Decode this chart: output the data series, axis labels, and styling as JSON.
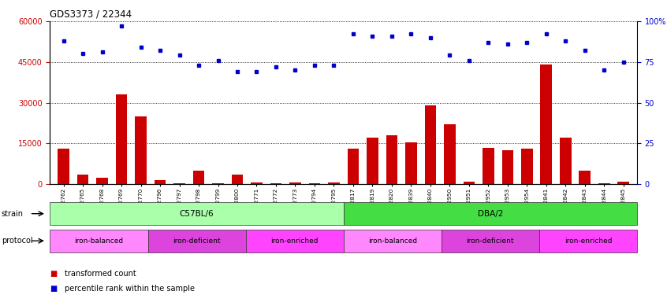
{
  "title": "GDS3373 / 22344",
  "samples": [
    "GSM262762",
    "GSM262765",
    "GSM262768",
    "GSM262769",
    "GSM262770",
    "GSM262796",
    "GSM262797",
    "GSM262798",
    "GSM262799",
    "GSM262800",
    "GSM262771",
    "GSM262772",
    "GSM262773",
    "GSM262794",
    "GSM262795",
    "GSM262817",
    "GSM262819",
    "GSM262820",
    "GSM262839",
    "GSM262840",
    "GSM262950",
    "GSM262951",
    "GSM262952",
    "GSM262953",
    "GSM262954",
    "GSM262841",
    "GSM262842",
    "GSM262843",
    "GSM262844",
    "GSM262845"
  ],
  "bar_values": [
    13000,
    3500,
    2500,
    33000,
    25000,
    1500,
    500,
    5000,
    500,
    3500,
    700,
    500,
    700,
    500,
    700,
    13000,
    17000,
    18000,
    15500,
    29000,
    22000,
    1000,
    13500,
    12500,
    13000,
    44000,
    17000,
    5000,
    500,
    1000
  ],
  "percentile_values": [
    88,
    80,
    81,
    97,
    84,
    82,
    79,
    73,
    76,
    69,
    69,
    72,
    70,
    73,
    73,
    92,
    91,
    91,
    92,
    90,
    79,
    76,
    87,
    86,
    87,
    92,
    88,
    82,
    70,
    75
  ],
  "ylim_left": [
    0,
    60000
  ],
  "ylim_right": [
    0,
    100
  ],
  "yticks_left": [
    0,
    15000,
    30000,
    45000,
    60000
  ],
  "yticks_right": [
    0,
    25,
    50,
    75,
    100
  ],
  "bar_color": "#cc0000",
  "dot_color": "#0000cc",
  "strain_groups": [
    {
      "label": "C57BL/6",
      "start": 0,
      "end": 15,
      "color": "#aaffaa"
    },
    {
      "label": "DBA/2",
      "start": 15,
      "end": 30,
      "color": "#44dd44"
    }
  ],
  "protocol_groups": [
    {
      "label": "iron-balanced",
      "start": 0,
      "end": 5,
      "color": "#ff88ff"
    },
    {
      "label": "iron-deficient",
      "start": 5,
      "end": 10,
      "color": "#dd44dd"
    },
    {
      "label": "iron-enriched",
      "start": 10,
      "end": 15,
      "color": "#ff44ff"
    },
    {
      "label": "iron-balanced",
      "start": 15,
      "end": 20,
      "color": "#ff88ff"
    },
    {
      "label": "iron-deficient",
      "start": 20,
      "end": 25,
      "color": "#dd44dd"
    },
    {
      "label": "iron-enriched",
      "start": 25,
      "end": 30,
      "color": "#ff44ff"
    }
  ],
  "legend_items": [
    {
      "label": "transformed count",
      "color": "#cc0000"
    },
    {
      "label": "percentile rank within the sample",
      "color": "#0000cc"
    }
  ],
  "bg_color": "#ffffff"
}
